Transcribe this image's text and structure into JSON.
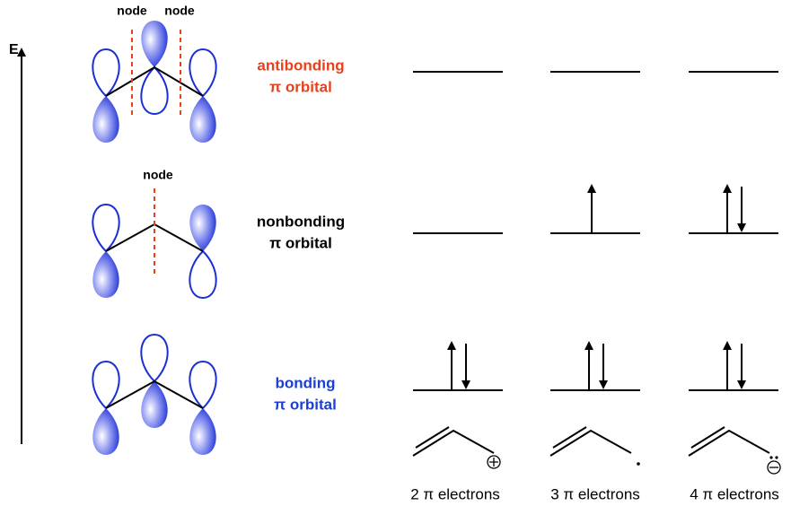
{
  "axis_label": "E",
  "nodes": [
    "node",
    "node",
    "node"
  ],
  "orbitals": [
    {
      "lines": [
        "antibonding",
        "π orbital"
      ]
    },
    {
      "lines": [
        "nonbonding",
        "π orbital"
      ]
    },
    {
      "lines": [
        "bonding",
        "π orbital"
      ]
    }
  ],
  "columns": [
    {
      "label": "2 π electrons"
    },
    {
      "label": "3 π electrons"
    },
    {
      "label": "4 π electrons"
    }
  ]
}
